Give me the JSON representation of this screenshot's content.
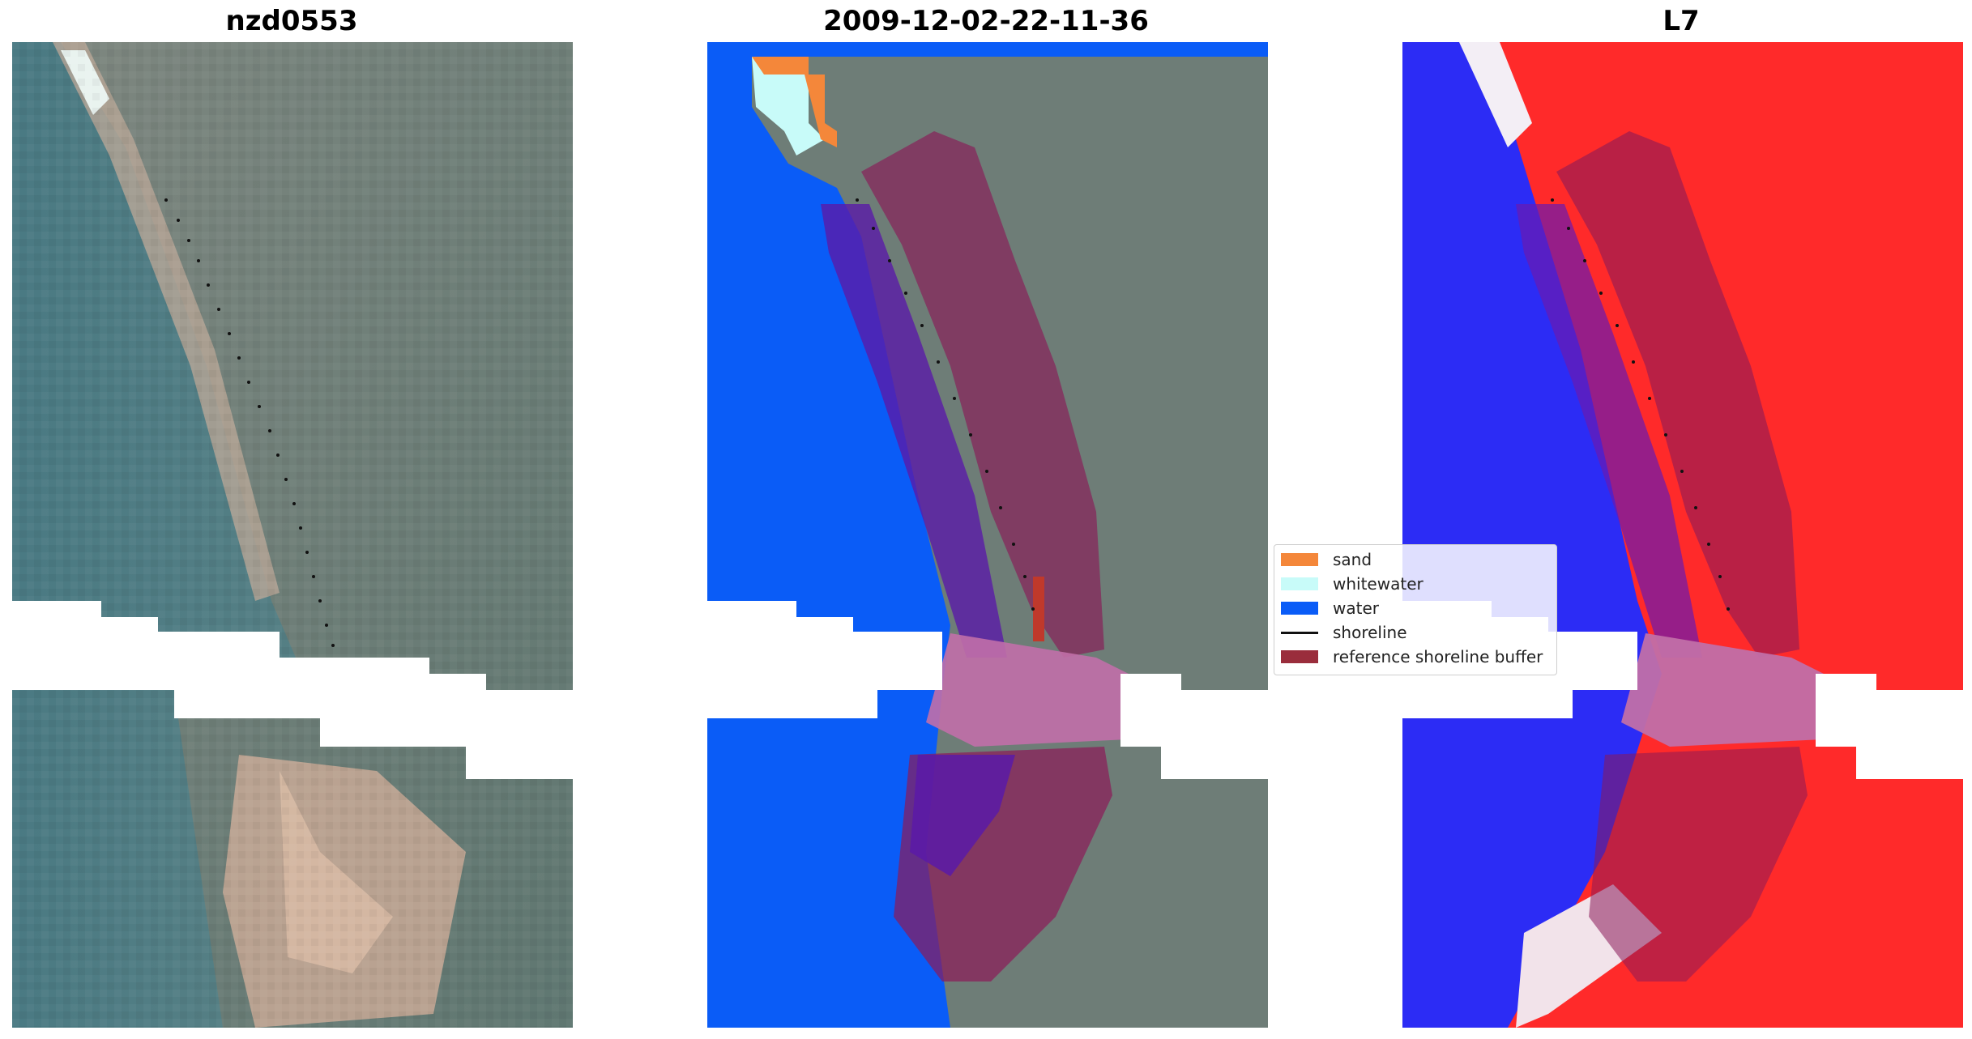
{
  "panels": {
    "rgb": {
      "title": "nzd0553"
    },
    "classified": {
      "title": "2009-12-02-22-11-36"
    },
    "index": {
      "title": "L7"
    }
  },
  "legend": {
    "items": [
      {
        "label": "sand",
        "color": "#f4873a"
      },
      {
        "label": "whitewater",
        "color": "#c8fbf9"
      },
      {
        "label": "water",
        "color": "#0a5cf7"
      },
      {
        "label": "shoreline",
        "color": "#111111"
      },
      {
        "label": "reference shoreline buffer",
        "color": "#9a2d3c"
      }
    ]
  },
  "colors": {
    "ocean": "#4e7e86",
    "land": "#6b7f7a",
    "beach": "#c9ab98",
    "water_class": "#0a5cf7",
    "buffer_overlay": "#8b1a58",
    "index_water": "#2c2cf5",
    "index_land": "#ff2222"
  }
}
